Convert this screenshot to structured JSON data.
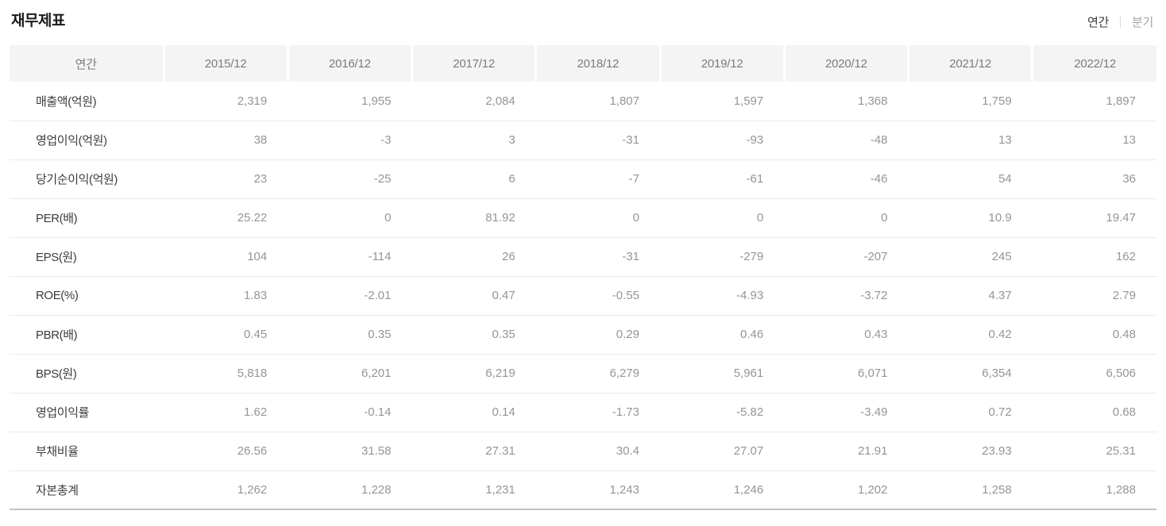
{
  "page": {
    "title": "재무제표"
  },
  "toggle": {
    "annual": "연간",
    "quarterly": "분기"
  },
  "table": {
    "corner_header": "연간",
    "columns": [
      "2015/12",
      "2016/12",
      "2017/12",
      "2018/12",
      "2019/12",
      "2020/12",
      "2021/12",
      "2022/12"
    ],
    "rows": [
      {
        "label": "매출액(억원)",
        "values": [
          "2,319",
          "1,955",
          "2,084",
          "1,807",
          "1,597",
          "1,368",
          "1,759",
          "1,897"
        ]
      },
      {
        "label": "영업이익(억원)",
        "values": [
          "38",
          "-3",
          "3",
          "-31",
          "-93",
          "-48",
          "13",
          "13"
        ]
      },
      {
        "label": "당기순이익(억원)",
        "values": [
          "23",
          "-25",
          "6",
          "-7",
          "-61",
          "-46",
          "54",
          "36"
        ]
      },
      {
        "label": "PER(배)",
        "values": [
          "25.22",
          "0",
          "81.92",
          "0",
          "0",
          "0",
          "10.9",
          "19.47"
        ]
      },
      {
        "label": "EPS(원)",
        "values": [
          "104",
          "-114",
          "26",
          "-31",
          "-279",
          "-207",
          "245",
          "162"
        ]
      },
      {
        "label": "ROE(%)",
        "values": [
          "1.83",
          "-2.01",
          "0.47",
          "-0.55",
          "-4.93",
          "-3.72",
          "4.37",
          "2.79"
        ]
      },
      {
        "label": "PBR(배)",
        "values": [
          "0.45",
          "0.35",
          "0.35",
          "0.29",
          "0.46",
          "0.43",
          "0.42",
          "0.48"
        ]
      },
      {
        "label": "BPS(원)",
        "values": [
          "5,818",
          "6,201",
          "6,219",
          "6,279",
          "5,961",
          "6,071",
          "6,354",
          "6,506"
        ]
      },
      {
        "label": "영업이익률",
        "values": [
          "1.62",
          "-0.14",
          "0.14",
          "-1.73",
          "-5.82",
          "-3.49",
          "0.72",
          "0.68"
        ]
      },
      {
        "label": "부채비율",
        "values": [
          "26.56",
          "31.58",
          "27.31",
          "30.4",
          "27.07",
          "21.91",
          "23.93",
          "25.31"
        ]
      },
      {
        "label": "자본총계",
        "values": [
          "1,262",
          "1,228",
          "1,231",
          "1,243",
          "1,246",
          "1,202",
          "1,258",
          "1,288"
        ]
      }
    ]
  },
  "colors": {
    "header_bg": "#f4f4f4",
    "header_text": "#7b7b7b",
    "label_text": "#3c3c3c",
    "value_text": "#959595",
    "row_border": "#eaeaea",
    "table_bottom_border": "#c2c2c2",
    "active_tab_text": "#3a3a3a",
    "inactive_tab_text": "#a6a6a6"
  }
}
